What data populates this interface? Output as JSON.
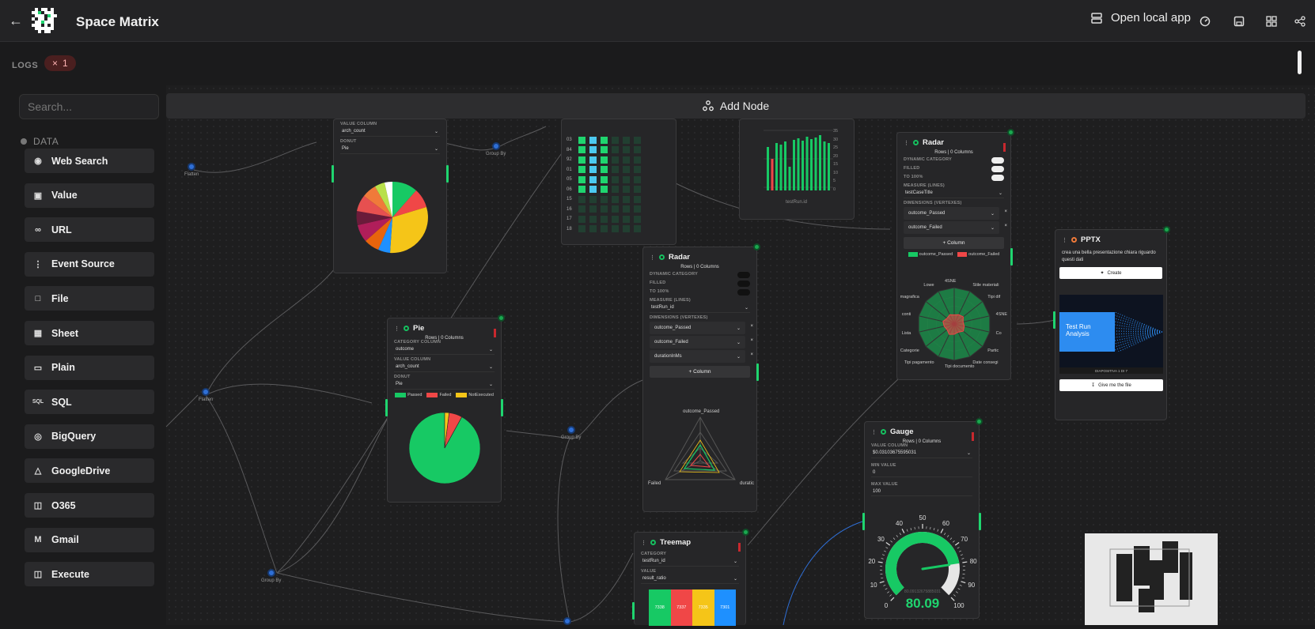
{
  "header": {
    "title": "Space Matrix",
    "open_local": "Open local app"
  },
  "logs": {
    "label": "LOGS",
    "badge": "1"
  },
  "sidebar": {
    "search_placeholder": "Search...",
    "section": "DATA",
    "items": [
      {
        "label": "Web Search",
        "icon": "globe-icon"
      },
      {
        "label": "Value",
        "icon": "value-icon"
      },
      {
        "label": "URL",
        "icon": "link-icon"
      },
      {
        "label": "Event Source",
        "icon": "event-source-icon"
      },
      {
        "label": "File",
        "icon": "file-icon"
      },
      {
        "label": "Sheet",
        "icon": "sheet-icon"
      },
      {
        "label": "Plain",
        "icon": "note-icon"
      },
      {
        "label": "SQL",
        "icon": "sql-icon"
      },
      {
        "label": "BigQuery",
        "icon": "bigquery-icon"
      },
      {
        "label": "GoogleDrive",
        "icon": "google-drive-icon"
      },
      {
        "label": "O365",
        "icon": "office-icon"
      },
      {
        "label": "Gmail",
        "icon": "gmail-icon"
      },
      {
        "label": "Execute",
        "icon": "execute-icon"
      }
    ]
  },
  "canvas": {
    "add_node": "Add Node",
    "groups": {
      "flatten": "Flatten",
      "group_by": "Group By"
    },
    "pie_top": {
      "value_column_label": "VALUE COLUMN",
      "value_column": "arch_count",
      "donut_label": "DONUT",
      "donut": "Pie"
    },
    "pie": {
      "title": "Pie",
      "rows": "Rows | 0 Columns",
      "category_label": "CATEGORY COLUMN",
      "category": "outcome",
      "value_label": "VALUE COLUMN",
      "value": "arch_count",
      "donut_label": "DONUT",
      "donut": "Pie",
      "legend": [
        "Passed",
        "Failed",
        "NotExecuted"
      ],
      "slices": [
        92,
        6,
        2
      ]
    },
    "heatmap": {
      "rows": [
        "03",
        "84",
        "92",
        "01",
        "05",
        "06",
        "15",
        "16",
        "17",
        "18"
      ]
    },
    "bar": {
      "xlabel": "testRun.id",
      "y_ticks": [
        "35",
        "30",
        "25",
        "20",
        "15",
        "10",
        "5",
        "0"
      ]
    },
    "radar_mid": {
      "title": "Radar",
      "rows": "Rows | 0 Columns",
      "dyn": "DYNAMIC CATEGORY",
      "filled": "FILLED",
      "to100": "TO 100%",
      "measure": "MEASURE (LINES)",
      "measure_val": "testRun_id",
      "dims": "DIMENSIONS (VERTEXES)",
      "dim_items": [
        "outcome_Passed",
        "outcome_Failed",
        "durationInMs"
      ],
      "column_btn": "Column",
      "axes": [
        "outcome_Passed",
        "Failed",
        "duratic"
      ]
    },
    "radar_right": {
      "title": "Radar",
      "rows": "Rows | 0 Columns",
      "dyn": "DYNAMIC CATEGORY",
      "filled": "FILLED",
      "to100": "TO 100%",
      "measure": "MEASURE (LINES)",
      "measure_val": "testCaseTitle",
      "dims": "DIMENSIONS (VERTEXES)",
      "dim_items": [
        "outcome_Passed",
        "outcome_Failed"
      ],
      "column_btn": "Column",
      "legend": [
        "outcome_Passed",
        "outcome_Failed"
      ],
      "axes": [
        "4SNE",
        "Stile materiali",
        "Tipi dif",
        "4SNE",
        "Co",
        "Partic",
        "Date consegi",
        "Tipi documento",
        "Tipi pagamento",
        "Categorie",
        "Lista",
        "conti",
        "magrafica",
        "Lowe"
      ]
    },
    "pptx": {
      "title": "PPTX",
      "prompt": "crea una bella presentazione chiara riguardo questi dati",
      "create": "Create",
      "slide_title": "Test Run Analysis",
      "slide_nav": "DIAPOSITIVA 1 DI 7",
      "download": "Give me the file"
    },
    "gauge": {
      "title": "Gauge",
      "rows": "Rows | 0 Columns",
      "value_label": "VALUE COLUMN",
      "value_col": "$0.03103675595031",
      "min_label": "MIN VALUE",
      "min": "0",
      "max_label": "MAX VALUE",
      "max": "100",
      "value": 80.09,
      "value_text": "80.09",
      "sub": "80.09132675885031",
      "ticks": [
        "0",
        "10",
        "20",
        "30",
        "40",
        "50",
        "60",
        "70",
        "80",
        "90",
        "100"
      ]
    },
    "treemap": {
      "title": "Treemap",
      "category_label": "CATEGORY",
      "category": "testRun_id",
      "value_label": "VALUE",
      "value": "result_ratio",
      "cells": [
        "7338",
        "7337",
        "7335",
        "7301"
      ]
    }
  },
  "colors": {
    "accent": "#1fd56f",
    "passed": "#17c964",
    "failed": "#f04747",
    "warn": "#f5c518",
    "blue": "#2f6fd6"
  }
}
